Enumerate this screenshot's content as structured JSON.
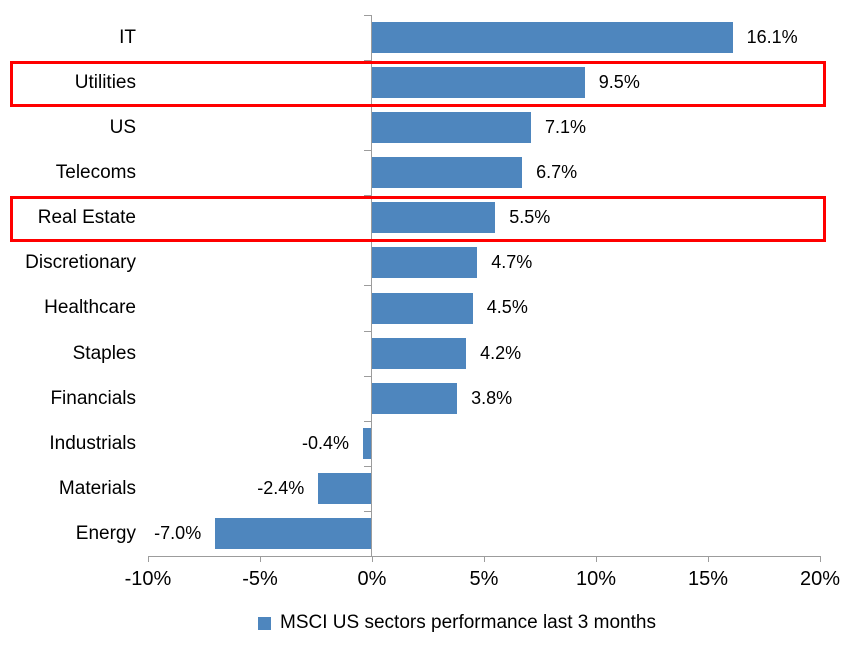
{
  "chart_data": {
    "type": "bar",
    "orientation": "horizontal",
    "title": "",
    "categories": [
      "IT",
      "Utilities",
      "US",
      "Telecoms",
      "Real Estate",
      "Discretionary",
      "Healthcare",
      "Staples",
      "Financials",
      "Industrials",
      "Materials",
      "Energy"
    ],
    "values": [
      16.1,
      9.5,
      7.1,
      6.7,
      5.5,
      4.7,
      4.5,
      4.2,
      3.8,
      -0.4,
      -2.4,
      -7.0
    ],
    "data_labels": [
      "16.1%",
      "9.5%",
      "7.1%",
      "6.7%",
      "5.5%",
      "4.7%",
      "4.5%",
      "4.2%",
      "3.8%",
      "-0.4%",
      "-2.4%",
      "-7.0%"
    ],
    "highlighted_categories": [
      "Utilities",
      "Real Estate"
    ],
    "x_axis": {
      "tick_labels": [
        "-10%",
        "-5%",
        "0%",
        "5%",
        "10%",
        "15%",
        "20%"
      ],
      "tick_values": [
        -10,
        -5,
        0,
        5,
        10,
        15,
        20
      ],
      "min": -10,
      "max": 20,
      "grid": false
    },
    "legend": {
      "label": "MSCI US sectors performance last 3 months",
      "marker": "square",
      "position": "bottom"
    },
    "colors": {
      "bar": "#4e86be",
      "highlight_box": "#ff0000",
      "axis": "#9c9c9c",
      "text": "#000000",
      "background": "#ffffff"
    }
  }
}
